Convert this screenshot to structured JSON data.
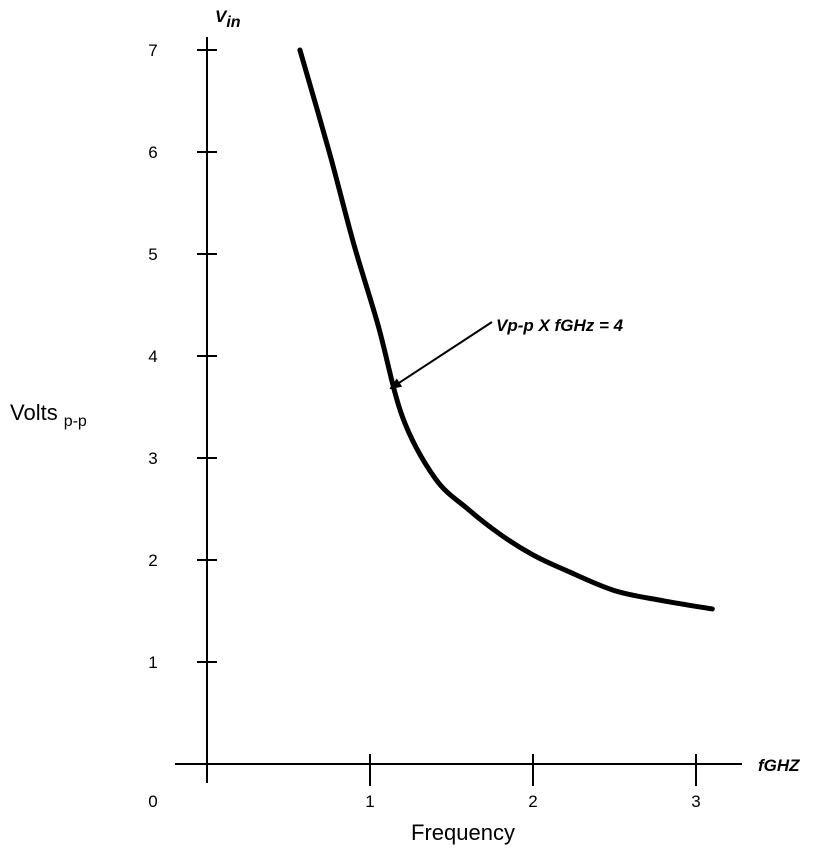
{
  "chart_data": {
    "type": "line",
    "y_axis_var": "V",
    "y_axis_var_sub": "in",
    "y_axis_title": "Volts",
    "y_axis_title_sub": "p-p",
    "x_axis_var": "fGHZ",
    "x_axis_title": "Frequency",
    "origin_label": "0",
    "x_ticks": [
      1,
      2,
      3
    ],
    "y_ticks": [
      1,
      2,
      3,
      4,
      5,
      6,
      7
    ],
    "xlim": [
      0,
      3.5
    ],
    "ylim": [
      0,
      7
    ],
    "grid": false,
    "series": [
      {
        "x": [
          0.57,
          0.75,
          0.9,
          1.05,
          1.2,
          1.4,
          1.6,
          1.8,
          2.0,
          2.2,
          2.5,
          2.8,
          3.1
        ],
        "y": [
          7.0,
          6.0,
          5.1,
          4.3,
          3.4,
          2.8,
          2.5,
          2.25,
          2.05,
          1.9,
          1.7,
          1.6,
          1.52
        ]
      }
    ],
    "annotations": [
      {
        "text": "Vp-p X fGHz = 4",
        "points_to": {
          "x": 1.1,
          "y": 3.7
        }
      }
    ]
  }
}
